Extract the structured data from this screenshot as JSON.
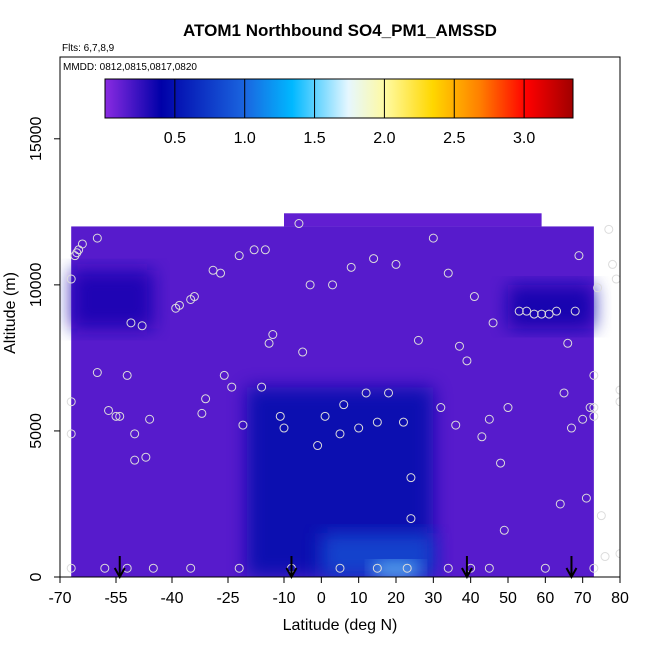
{
  "chart_data": {
    "type": "heatmap",
    "title": "ATOM1 Northbound SO4_PM1_AMSSD",
    "annotations": {
      "flights": "Flts: 6,7,8,9",
      "dates": "MMDD: 0812,0815,0817,0820"
    },
    "xlabel": "Latitude (deg N)",
    "ylabel": "Altitude (m)",
    "xlim": [
      -70,
      80
    ],
    "ylim": [
      0,
      17800
    ],
    "x_ticks": [
      -70,
      -55,
      -40,
      -25,
      -10,
      0,
      10,
      20,
      30,
      40,
      50,
      60,
      70,
      80
    ],
    "y_ticks": [
      0,
      5000,
      10000,
      15000
    ],
    "colorbar": {
      "min": 0.0,
      "max": 3.35,
      "ticks": [
        0.5,
        1.0,
        1.5,
        2.0,
        2.5,
        3.0
      ],
      "colors": [
        "#8a2be2",
        "#0000a8",
        "#1a66e0",
        "#00b8ff",
        "#e6f7ff",
        "#fffaa0",
        "#ffd700",
        "#ff8000",
        "#ff0000",
        "#a00000"
      ],
      "units": "SO4_PM1_AMSSD"
    },
    "arrow_latitudes": [
      -54,
      -8,
      39,
      67
    ],
    "data_regions": [
      {
        "desc": "background",
        "lat": [
          -67,
          73
        ],
        "alt": [
          0,
          12000
        ],
        "value": 0.15
      },
      {
        "desc": "upper plateau",
        "lat": [
          -10,
          59
        ],
        "alt": [
          12000,
          12450
        ],
        "value": 0.12
      },
      {
        "desc": "southern upper band",
        "lat": [
          -67,
          -45
        ],
        "alt": [
          8500,
          10500
        ],
        "value": 0.35
      },
      {
        "desc": "northern upper band",
        "lat": [
          50,
          73
        ],
        "alt": [
          8500,
          10000
        ],
        "value": 0.38
      },
      {
        "desc": "tropical low-mid plume",
        "lat": [
          -20,
          30
        ],
        "alt": [
          0,
          6500
        ],
        "value": 0.45
      },
      {
        "desc": "tropical boundary layer",
        "lat": [
          0,
          30
        ],
        "alt": [
          0,
          1500
        ],
        "value": 0.85
      },
      {
        "desc": "surface maximum",
        "lat": [
          14,
          26
        ],
        "alt": [
          0,
          500
        ],
        "value": 1.55
      }
    ],
    "sample_points": [
      [
        -67,
        10200
      ],
      [
        -67,
        6000
      ],
      [
        -67,
        4900
      ],
      [
        -67,
        300
      ],
      [
        -66,
        11000
      ],
      [
        -65.5,
        11100
      ],
      [
        -65,
        11200
      ],
      [
        -64,
        11400
      ],
      [
        -60,
        11600
      ],
      [
        -60,
        7000
      ],
      [
        -57,
        5700
      ],
      [
        -55,
        5500
      ],
      [
        -54,
        5500
      ],
      [
        -52,
        6900
      ],
      [
        -51,
        8700
      ],
      [
        -50,
        4000
      ],
      [
        -50,
        4900
      ],
      [
        -48,
        8600
      ],
      [
        -47,
        4100
      ],
      [
        -46,
        5400
      ],
      [
        -58,
        300
      ],
      [
        -52,
        300
      ],
      [
        -45,
        300
      ],
      [
        -39,
        9200
      ],
      [
        -38,
        9300
      ],
      [
        -35,
        9500
      ],
      [
        -34,
        9600
      ],
      [
        -32,
        5600
      ],
      [
        -31,
        6100
      ],
      [
        -29,
        10500
      ],
      [
        -27,
        10400
      ],
      [
        -26,
        6900
      ],
      [
        -24,
        6500
      ],
      [
        -22,
        11000
      ],
      [
        -21,
        5200
      ],
      [
        -18,
        11200
      ],
      [
        -16,
        6500
      ],
      [
        -15,
        11200
      ],
      [
        -14,
        8000
      ],
      [
        -13,
        8300
      ],
      [
        -11,
        5500
      ],
      [
        -10,
        5100
      ],
      [
        -6,
        12100
      ],
      [
        -5,
        7700
      ],
      [
        -3,
        10000
      ],
      [
        -1,
        4500
      ],
      [
        1,
        5500
      ],
      [
        3,
        10000
      ],
      [
        5,
        4900
      ],
      [
        6,
        5900
      ],
      [
        8,
        10600
      ],
      [
        10,
        5100
      ],
      [
        12,
        6300
      ],
      [
        14,
        10900
      ],
      [
        15,
        5300
      ],
      [
        18,
        6300
      ],
      [
        20,
        10700
      ],
      [
        22,
        5300
      ],
      [
        24,
        3400
      ],
      [
        24,
        2000
      ],
      [
        26,
        8100
      ],
      [
        30,
        11600
      ],
      [
        32,
        5800
      ],
      [
        34,
        10400
      ],
      [
        36,
        5200
      ],
      [
        37,
        7900
      ],
      [
        39,
        7400
      ],
      [
        41,
        9600
      ],
      [
        43,
        4800
      ],
      [
        45,
        5400
      ],
      [
        46,
        8700
      ],
      [
        48,
        3900
      ],
      [
        49,
        1600
      ],
      [
        50,
        5800
      ],
      [
        53,
        9100
      ],
      [
        55,
        9100
      ],
      [
        57,
        9000
      ],
      [
        59,
        9000
      ],
      [
        61,
        9000
      ],
      [
        63,
        9100
      ],
      [
        64,
        2500
      ],
      [
        65,
        6300
      ],
      [
        66,
        8000
      ],
      [
        67,
        5100
      ],
      [
        68,
        9100
      ],
      [
        69,
        11000
      ],
      [
        70,
        5400
      ],
      [
        71,
        2700
      ],
      [
        72,
        5800
      ],
      [
        73,
        6900
      ],
      [
        73,
        5500
      ],
      [
        73,
        5800
      ],
      [
        74,
        9900
      ],
      [
        75,
        2100
      ],
      [
        76,
        700
      ],
      [
        77,
        11900
      ],
      [
        78,
        10700
      ],
      [
        79,
        10200
      ],
      [
        80,
        6000
      ],
      [
        80,
        6400
      ],
      [
        80,
        800
      ],
      [
        -35,
        300
      ],
      [
        -22,
        300
      ],
      [
        -8,
        300
      ],
      [
        5,
        300
      ],
      [
        15,
        300
      ],
      [
        23,
        300
      ],
      [
        34,
        300
      ],
      [
        40,
        300
      ],
      [
        45,
        300
      ],
      [
        60,
        300
      ],
      [
        73,
        300
      ]
    ]
  }
}
